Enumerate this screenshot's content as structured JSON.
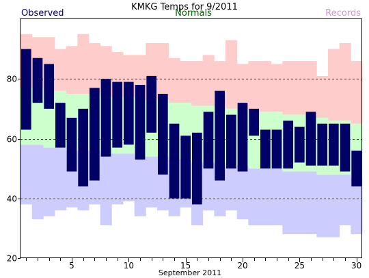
{
  "chart_data": {
    "type": "bar",
    "title": "KMKG Temps for 9/2011",
    "xlabel": "September 2011",
    "legend": {
      "observed": "Observed",
      "normals": "Normals",
      "records": "Records"
    },
    "colors": {
      "observed": "#000066",
      "normals": "#ccffcc",
      "records_high": "#ffcccc",
      "records_low": "#ccccff",
      "observed_text": "#000066",
      "normals_text": "#006600",
      "records_text": "#cc99cc"
    },
    "ylim": [
      20,
      100
    ],
    "xlim": [
      0.5,
      30.5
    ],
    "yticks": [
      20,
      40,
      60,
      80
    ],
    "dashed_gridlines": [
      40,
      60,
      80
    ],
    "xticks": [
      5,
      10,
      15,
      20,
      25,
      30
    ],
    "days": [
      1,
      2,
      3,
      4,
      5,
      6,
      7,
      8,
      9,
      10,
      11,
      12,
      13,
      14,
      15,
      16,
      17,
      18,
      19,
      20,
      21,
      22,
      23,
      24,
      25,
      26,
      27,
      28,
      29,
      30
    ],
    "observed_high": [
      90,
      87,
      85,
      72,
      67,
      70,
      77,
      80,
      79,
      79,
      78,
      81,
      75,
      65,
      61,
      62,
      69,
      76,
      68,
      72,
      70,
      63,
      63,
      66,
      64,
      69,
      65,
      65,
      65,
      56
    ],
    "observed_low": [
      63,
      72,
      70,
      57,
      49,
      44,
      46,
      54,
      57,
      58,
      53,
      62,
      48,
      40,
      40,
      38,
      50,
      46,
      50,
      49,
      61,
      50,
      50,
      50,
      52,
      51,
      51,
      51,
      49,
      44
    ],
    "normal_high": [
      77,
      77,
      76,
      76,
      75,
      75,
      75,
      74,
      74,
      74,
      73,
      73,
      73,
      72,
      72,
      71,
      71,
      71,
      70,
      70,
      69,
      69,
      69,
      68,
      68,
      67,
      67,
      66,
      66,
      65
    ],
    "normal_low": [
      58,
      58,
      57,
      57,
      56,
      56,
      56,
      55,
      55,
      55,
      54,
      54,
      54,
      53,
      53,
      52,
      52,
      52,
      51,
      51,
      50,
      50,
      50,
      49,
      49,
      49,
      48,
      48,
      48,
      47
    ],
    "record_high": [
      95,
      94,
      94,
      90,
      91,
      95,
      92,
      91,
      89,
      88,
      88,
      92,
      92,
      87,
      86,
      86,
      88,
      86,
      93,
      85,
      86,
      86,
      85,
      86,
      86,
      86,
      81,
      90,
      92,
      86
    ],
    "record_low": [
      38,
      33,
      34,
      36,
      37,
      36,
      38,
      31,
      38,
      39,
      34,
      37,
      36,
      34,
      37,
      31,
      36,
      34,
      36,
      33,
      31,
      31,
      31,
      28,
      28,
      28,
      27,
      27,
      31,
      28
    ]
  }
}
